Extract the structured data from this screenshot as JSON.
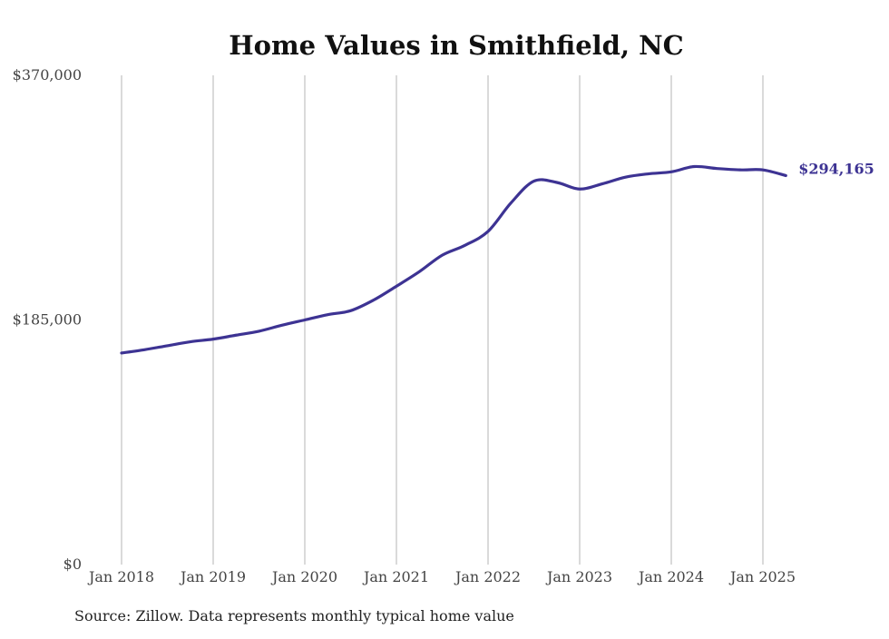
{
  "chart_data": {
    "type": "line",
    "title": "Home Values in Smithfield, NC",
    "source": "Source: Zillow. Data represents monthly typical home value",
    "ylim": [
      0,
      370000
    ],
    "y_ticks": [
      {
        "value": 0,
        "label": "$0"
      },
      {
        "value": 185000,
        "label": "$185,000"
      },
      {
        "value": 370000,
        "label": "$370,000"
      }
    ],
    "x_ticks": [
      {
        "value": "2018-01",
        "label": "Jan 2018"
      },
      {
        "value": "2019-01",
        "label": "Jan 2019"
      },
      {
        "value": "2020-01",
        "label": "Jan 2020"
      },
      {
        "value": "2021-01",
        "label": "Jan 2021"
      },
      {
        "value": "2022-01",
        "label": "Jan 2022"
      },
      {
        "value": "2023-01",
        "label": "Jan 2023"
      },
      {
        "value": "2024-01",
        "label": "Jan 2024"
      },
      {
        "value": "2025-01",
        "label": "Jan 2025"
      }
    ],
    "grid": {
      "vertical": true,
      "horizontal": false
    },
    "series": [
      {
        "color": "#3d3393",
        "end_label": "$294,165",
        "points": [
          [
            "2018-01",
            160000
          ],
          [
            "2018-04",
            162500
          ],
          [
            "2018-07",
            165500
          ],
          [
            "2018-10",
            168500
          ],
          [
            "2019-01",
            170500
          ],
          [
            "2019-04",
            173500
          ],
          [
            "2019-07",
            176500
          ],
          [
            "2019-10",
            181000
          ],
          [
            "2020-01",
            185000
          ],
          [
            "2020-04",
            189000
          ],
          [
            "2020-07",
            192000
          ],
          [
            "2020-10",
            200000
          ],
          [
            "2021-01",
            210500
          ],
          [
            "2021-04",
            221500
          ],
          [
            "2021-07",
            234000
          ],
          [
            "2021-10",
            241500
          ],
          [
            "2022-01",
            252000
          ],
          [
            "2022-04",
            273500
          ],
          [
            "2022-07",
            290000
          ],
          [
            "2022-10",
            289000
          ],
          [
            "2023-01",
            284000
          ],
          [
            "2023-04",
            288000
          ],
          [
            "2023-07",
            293000
          ],
          [
            "2023-10",
            295500
          ],
          [
            "2024-01",
            297000
          ],
          [
            "2024-04",
            301000
          ],
          [
            "2024-07",
            299500
          ],
          [
            "2024-10",
            298500
          ],
          [
            "2025-01",
            298500
          ],
          [
            "2025-04",
            294165
          ]
        ]
      }
    ]
  }
}
